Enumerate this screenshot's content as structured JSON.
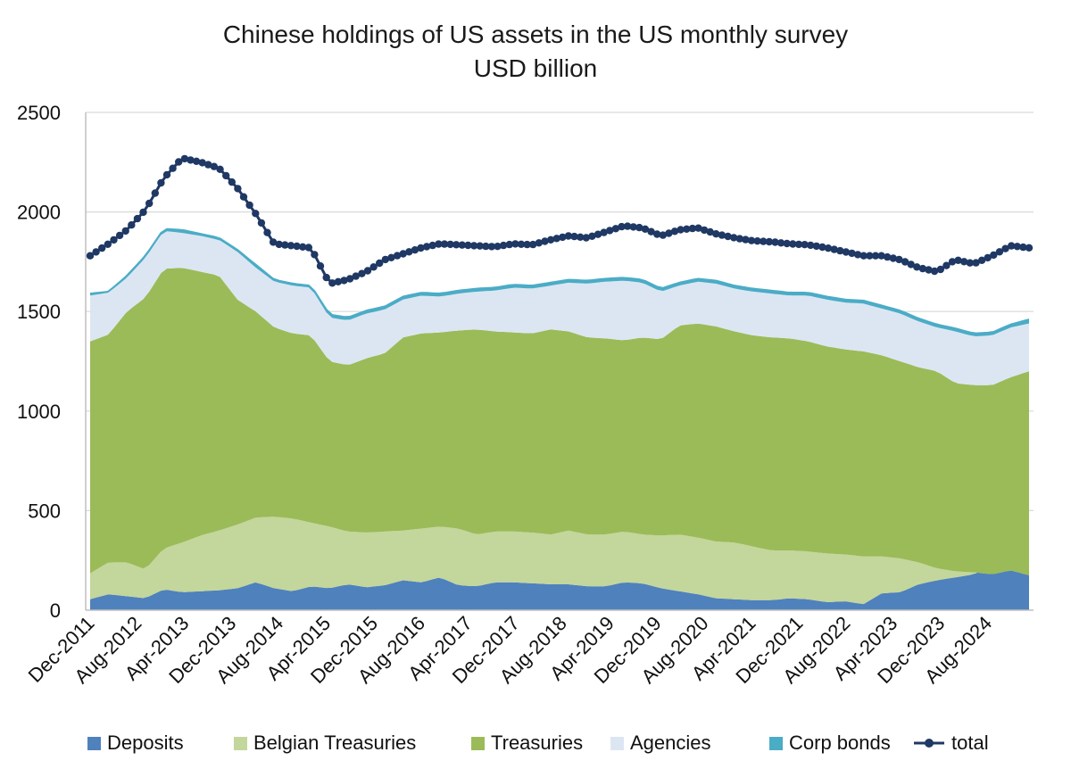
{
  "chart_data": {
    "type": "area",
    "title": "Chinese holdings of US assets in the US monthly survey",
    "subtitle": "USD billion",
    "xlabel": "",
    "ylabel": "",
    "ylim": [
      0,
      2500
    ],
    "yticks": [
      "0",
      "500",
      "1000",
      "1500",
      "2000",
      "2500"
    ],
    "grid": "horizontal",
    "legend_position": "bottom",
    "x_start": "Dec-2011",
    "x_end": "Mar-2025",
    "x_tick_labels": [
      "Dec-2011",
      "Aug-2012",
      "Apr-2013",
      "Dec-2013",
      "Aug-2014",
      "Apr-2015",
      "Dec-2015",
      "Aug-2016",
      "Apr-2017",
      "Dec-2017",
      "Aug-2018",
      "Apr-2019",
      "Dec-2019",
      "Aug-2020",
      "Apr-2021",
      "Dec-2021",
      "Aug-2022",
      "Apr-2023",
      "Dec-2023",
      "Aug-2024"
    ],
    "keypoint_dates": [
      "Dec-2011",
      "Aug-2012",
      "Apr-2013",
      "Dec-2013",
      "Aug-2014",
      "Apr-2015",
      "Dec-2015",
      "Aug-2016",
      "Apr-2017",
      "Dec-2017",
      "Aug-2018",
      "Apr-2019",
      "Dec-2019",
      "Aug-2020",
      "Apr-2021",
      "Dec-2021",
      "Aug-2022",
      "Apr-2023",
      "Dec-2023",
      "Aug-2024",
      "Mar-2025"
    ],
    "series": [
      {
        "name": "Deposits",
        "kind": "stack",
        "color": "#4f81bd",
        "values": [
          55,
          80,
          70,
          60,
          105,
          90,
          95,
          100,
          110,
          140,
          110,
          95,
          120,
          110,
          130,
          115,
          125,
          150,
          140,
          165,
          125,
          120,
          140,
          140,
          135,
          130,
          130,
          120,
          120,
          140,
          135,
          110,
          95,
          80,
          60,
          55,
          50,
          50,
          60,
          55,
          40,
          45,
          30,
          85,
          90,
          130,
          150,
          165,
          180,
          230,
          235,
          230
        ]
      },
      {
        "name": "Belgian Treasuries",
        "kind": "stack",
        "color": "#c3d69b",
        "values": [
          185,
          240,
          240,
          205,
          310,
          340,
          375,
          400,
          430,
          465,
          470,
          460,
          440,
          420,
          395,
          390,
          395,
          400,
          410,
          420,
          410,
          380,
          395,
          395,
          390,
          380,
          400,
          380,
          380,
          395,
          380,
          375,
          380,
          365,
          345,
          340,
          320,
          300,
          300,
          295,
          285,
          280,
          270,
          270,
          260,
          240,
          210,
          195,
          190,
          180,
          200,
          175
        ]
      },
      {
        "name": "Treasuries",
        "kind": "stack",
        "color": "#9bbb59",
        "values": [
          1350,
          1385,
          1500,
          1570,
          1715,
          1720,
          1700,
          1680,
          1560,
          1500,
          1420,
          1390,
          1380,
          1250,
          1230,
          1265,
          1290,
          1370,
          1390,
          1395,
          1405,
          1410,
          1400,
          1395,
          1390,
          1410,
          1400,
          1370,
          1365,
          1355,
          1370,
          1360,
          1430,
          1440,
          1425,
          1400,
          1380,
          1370,
          1365,
          1350,
          1325,
          1310,
          1300,
          1280,
          1250,
          1220,
          1200,
          1140,
          1130,
          1130,
          1170,
          1200
        ]
      },
      {
        "name": "Agencies",
        "kind": "stack",
        "color": "#dce6f2",
        "values": [
          1580,
          1595,
          1670,
          1770,
          1905,
          1895,
          1880,
          1860,
          1800,
          1720,
          1650,
          1630,
          1620,
          1470,
          1455,
          1490,
          1510,
          1560,
          1580,
          1575,
          1590,
          1600,
          1605,
          1620,
          1615,
          1630,
          1645,
          1640,
          1650,
          1655,
          1645,
          1600,
          1630,
          1650,
          1640,
          1615,
          1600,
          1590,
          1580,
          1580,
          1560,
          1545,
          1540,
          1515,
          1490,
          1450,
          1420,
          1400,
          1375,
          1380,
          1420,
          1440
        ]
      },
      {
        "name": "Corp bonds",
        "kind": "stack",
        "color": "#4bacc6",
        "values": [
          1590,
          1600,
          1680,
          1780,
          1915,
          1910,
          1890,
          1870,
          1810,
          1735,
          1660,
          1640,
          1630,
          1485,
          1470,
          1505,
          1525,
          1575,
          1595,
          1590,
          1605,
          1615,
          1620,
          1635,
          1630,
          1645,
          1660,
          1655,
          1665,
          1670,
          1660,
          1615,
          1645,
          1665,
          1655,
          1630,
          1615,
          1605,
          1595,
          1595,
          1575,
          1560,
          1555,
          1530,
          1505,
          1465,
          1435,
          1415,
          1390,
          1395,
          1435,
          1460
        ]
      },
      {
        "name": "total",
        "kind": "line",
        "color": "#1f3864",
        "values": [
          1780,
          1840,
          1910,
          2010,
          2170,
          2270,
          2250,
          2220,
          2120,
          1990,
          1840,
          1830,
          1820,
          1640,
          1660,
          1700,
          1760,
          1790,
          1820,
          1840,
          1835,
          1830,
          1825,
          1840,
          1835,
          1860,
          1880,
          1870,
          1900,
          1930,
          1920,
          1880,
          1910,
          1920,
          1890,
          1870,
          1855,
          1850,
          1840,
          1835,
          1820,
          1800,
          1780,
          1780,
          1760,
          1720,
          1700,
          1760,
          1740,
          1780,
          1830,
          1820
        ]
      }
    ]
  }
}
